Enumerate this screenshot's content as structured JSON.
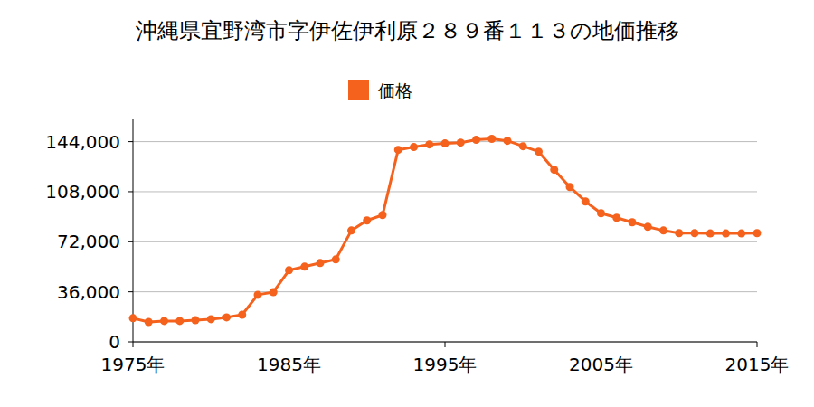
{
  "chart_data": {
    "type": "line",
    "title": "沖縄県宜野湾市字伊佐伊利原２８９番１１３の地価推移",
    "x": [
      1975,
      1976,
      1977,
      1978,
      1979,
      1980,
      1981,
      1982,
      1983,
      1984,
      1985,
      1986,
      1987,
      1988,
      1989,
      1990,
      1991,
      1992,
      1993,
      1994,
      1995,
      1996,
      1997,
      1998,
      1999,
      2000,
      2001,
      2002,
      2003,
      2004,
      2005,
      2006,
      2007,
      2008,
      2009,
      2010,
      2011,
      2012,
      2013,
      2014,
      2015
    ],
    "series": [
      {
        "name": "価格",
        "color": "#f5621e",
        "marker": "circle",
        "values": [
          17000,
          14300,
          15000,
          15000,
          15600,
          16300,
          17600,
          19500,
          33900,
          35800,
          51500,
          54100,
          56700,
          59300,
          80100,
          87300,
          91200,
          138100,
          140100,
          142000,
          142700,
          143300,
          145300,
          146000,
          144600,
          140700,
          136800,
          123800,
          111400,
          101000,
          92500,
          89300,
          86000,
          82800,
          80100,
          78200,
          78200,
          78000,
          78000,
          78000,
          78200
        ]
      }
    ],
    "xlim": [
      1975,
      2015
    ],
    "xticks": [
      {
        "value": 1975,
        "label": "1975年"
      },
      {
        "value": 1985,
        "label": "1985年"
      },
      {
        "value": 1995,
        "label": "1995年"
      },
      {
        "value": 2005,
        "label": "2005年"
      },
      {
        "value": 2015,
        "label": "2015年"
      }
    ],
    "ylim": [
      0,
      160000
    ],
    "yticks": [
      0,
      {
        "value": 36000,
        "label": "36,000"
      },
      {
        "value": 72000,
        "label": "72,000"
      },
      {
        "value": 108000,
        "label": "108,000"
      },
      {
        "value": 144000,
        "label": "144,000"
      }
    ],
    "grid": true,
    "legend": "top"
  }
}
